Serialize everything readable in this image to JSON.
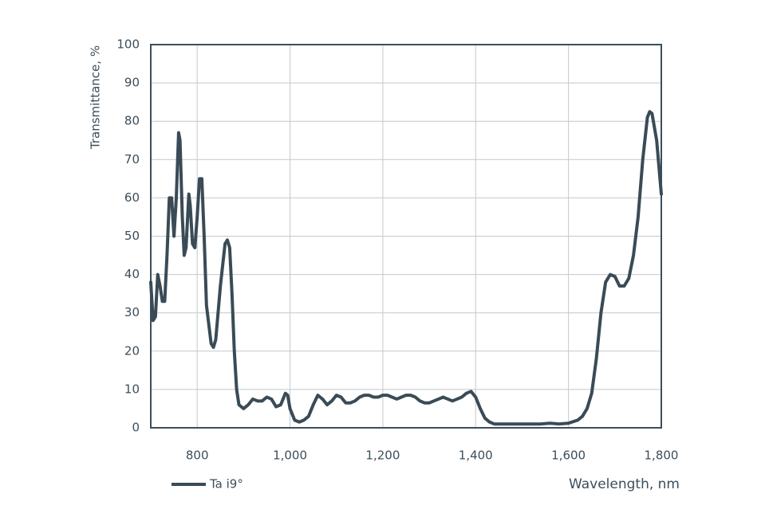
{
  "chart_data": {
    "type": "line",
    "x_label": "Wavelength, nm",
    "y_label": "Transmittance, %",
    "xlim": [
      700,
      1800
    ],
    "ylim": [
      0,
      100
    ],
    "xticks": [
      800,
      {
        "value": 1000,
        "label": "1,000"
      },
      {
        "value": 1200,
        "label": "1,200"
      },
      {
        "value": 1400,
        "label": "1,400"
      },
      {
        "value": 1600,
        "label": "1,600"
      },
      {
        "value": 1800,
        "label": "1,800"
      }
    ],
    "yticks": [
      0,
      10,
      20,
      30,
      40,
      50,
      60,
      70,
      80,
      90,
      100
    ],
    "grid": true,
    "legend": "bottom-left",
    "x": [
      700,
      705,
      710,
      715,
      720,
      725,
      730,
      735,
      740,
      745,
      750,
      755,
      760,
      763,
      768,
      772,
      776,
      782,
      785,
      790,
      795,
      800,
      805,
      810,
      815,
      820,
      830,
      835,
      840,
      850,
      860,
      865,
      870,
      875,
      880,
      885,
      890,
      900,
      910,
      920,
      930,
      940,
      950,
      960,
      970,
      980,
      990,
      995,
      1000,
      1010,
      1020,
      1030,
      1040,
      1050,
      1060,
      1070,
      1080,
      1090,
      1100,
      1110,
      1120,
      1130,
      1140,
      1150,
      1160,
      1170,
      1180,
      1190,
      1200,
      1210,
      1220,
      1230,
      1240,
      1250,
      1260,
      1270,
      1280,
      1290,
      1300,
      1310,
      1320,
      1330,
      1340,
      1350,
      1360,
      1370,
      1380,
      1390,
      1400,
      1410,
      1420,
      1430,
      1440,
      1460,
      1480,
      1500,
      1520,
      1540,
      1560,
      1580,
      1600,
      1620,
      1630,
      1640,
      1650,
      1660,
      1670,
      1680,
      1690,
      1700,
      1710,
      1720,
      1730,
      1740,
      1750,
      1760,
      1770,
      1775,
      1780,
      1790,
      1800
    ],
    "series": [
      {
        "name": "Ta i9°",
        "color": "#3a4b56",
        "values": [
          38,
          28,
          29,
          40,
          37,
          33,
          33,
          45,
          60,
          60,
          50,
          60,
          77,
          75,
          55,
          45,
          47,
          61,
          58,
          48,
          47,
          55,
          65,
          65,
          50,
          32,
          22,
          21,
          23,
          37,
          48,
          49,
          47,
          35,
          20,
          10,
          6,
          5,
          6,
          7.5,
          7,
          7,
          8,
          7.5,
          5.5,
          6,
          9,
          8.5,
          5,
          2,
          1.5,
          2,
          3,
          6,
          8.5,
          7.5,
          6,
          7,
          8.5,
          8,
          6.5,
          6.5,
          7,
          8,
          8.5,
          8.5,
          8,
          8,
          8.5,
          8.5,
          8,
          7.5,
          8,
          8.5,
          8.5,
          8,
          7,
          6.5,
          6.5,
          7,
          7.5,
          8,
          7.5,
          7,
          7.5,
          8,
          9,
          9.5,
          8,
          5,
          2.5,
          1.5,
          1,
          1,
          1,
          1,
          1,
          1,
          1.2,
          1,
          1.2,
          2,
          3,
          5,
          9,
          18,
          30,
          38,
          40,
          39.5,
          37,
          37,
          39,
          45,
          55,
          70,
          81,
          82.5,
          82,
          75,
          61
        ]
      }
    ]
  }
}
